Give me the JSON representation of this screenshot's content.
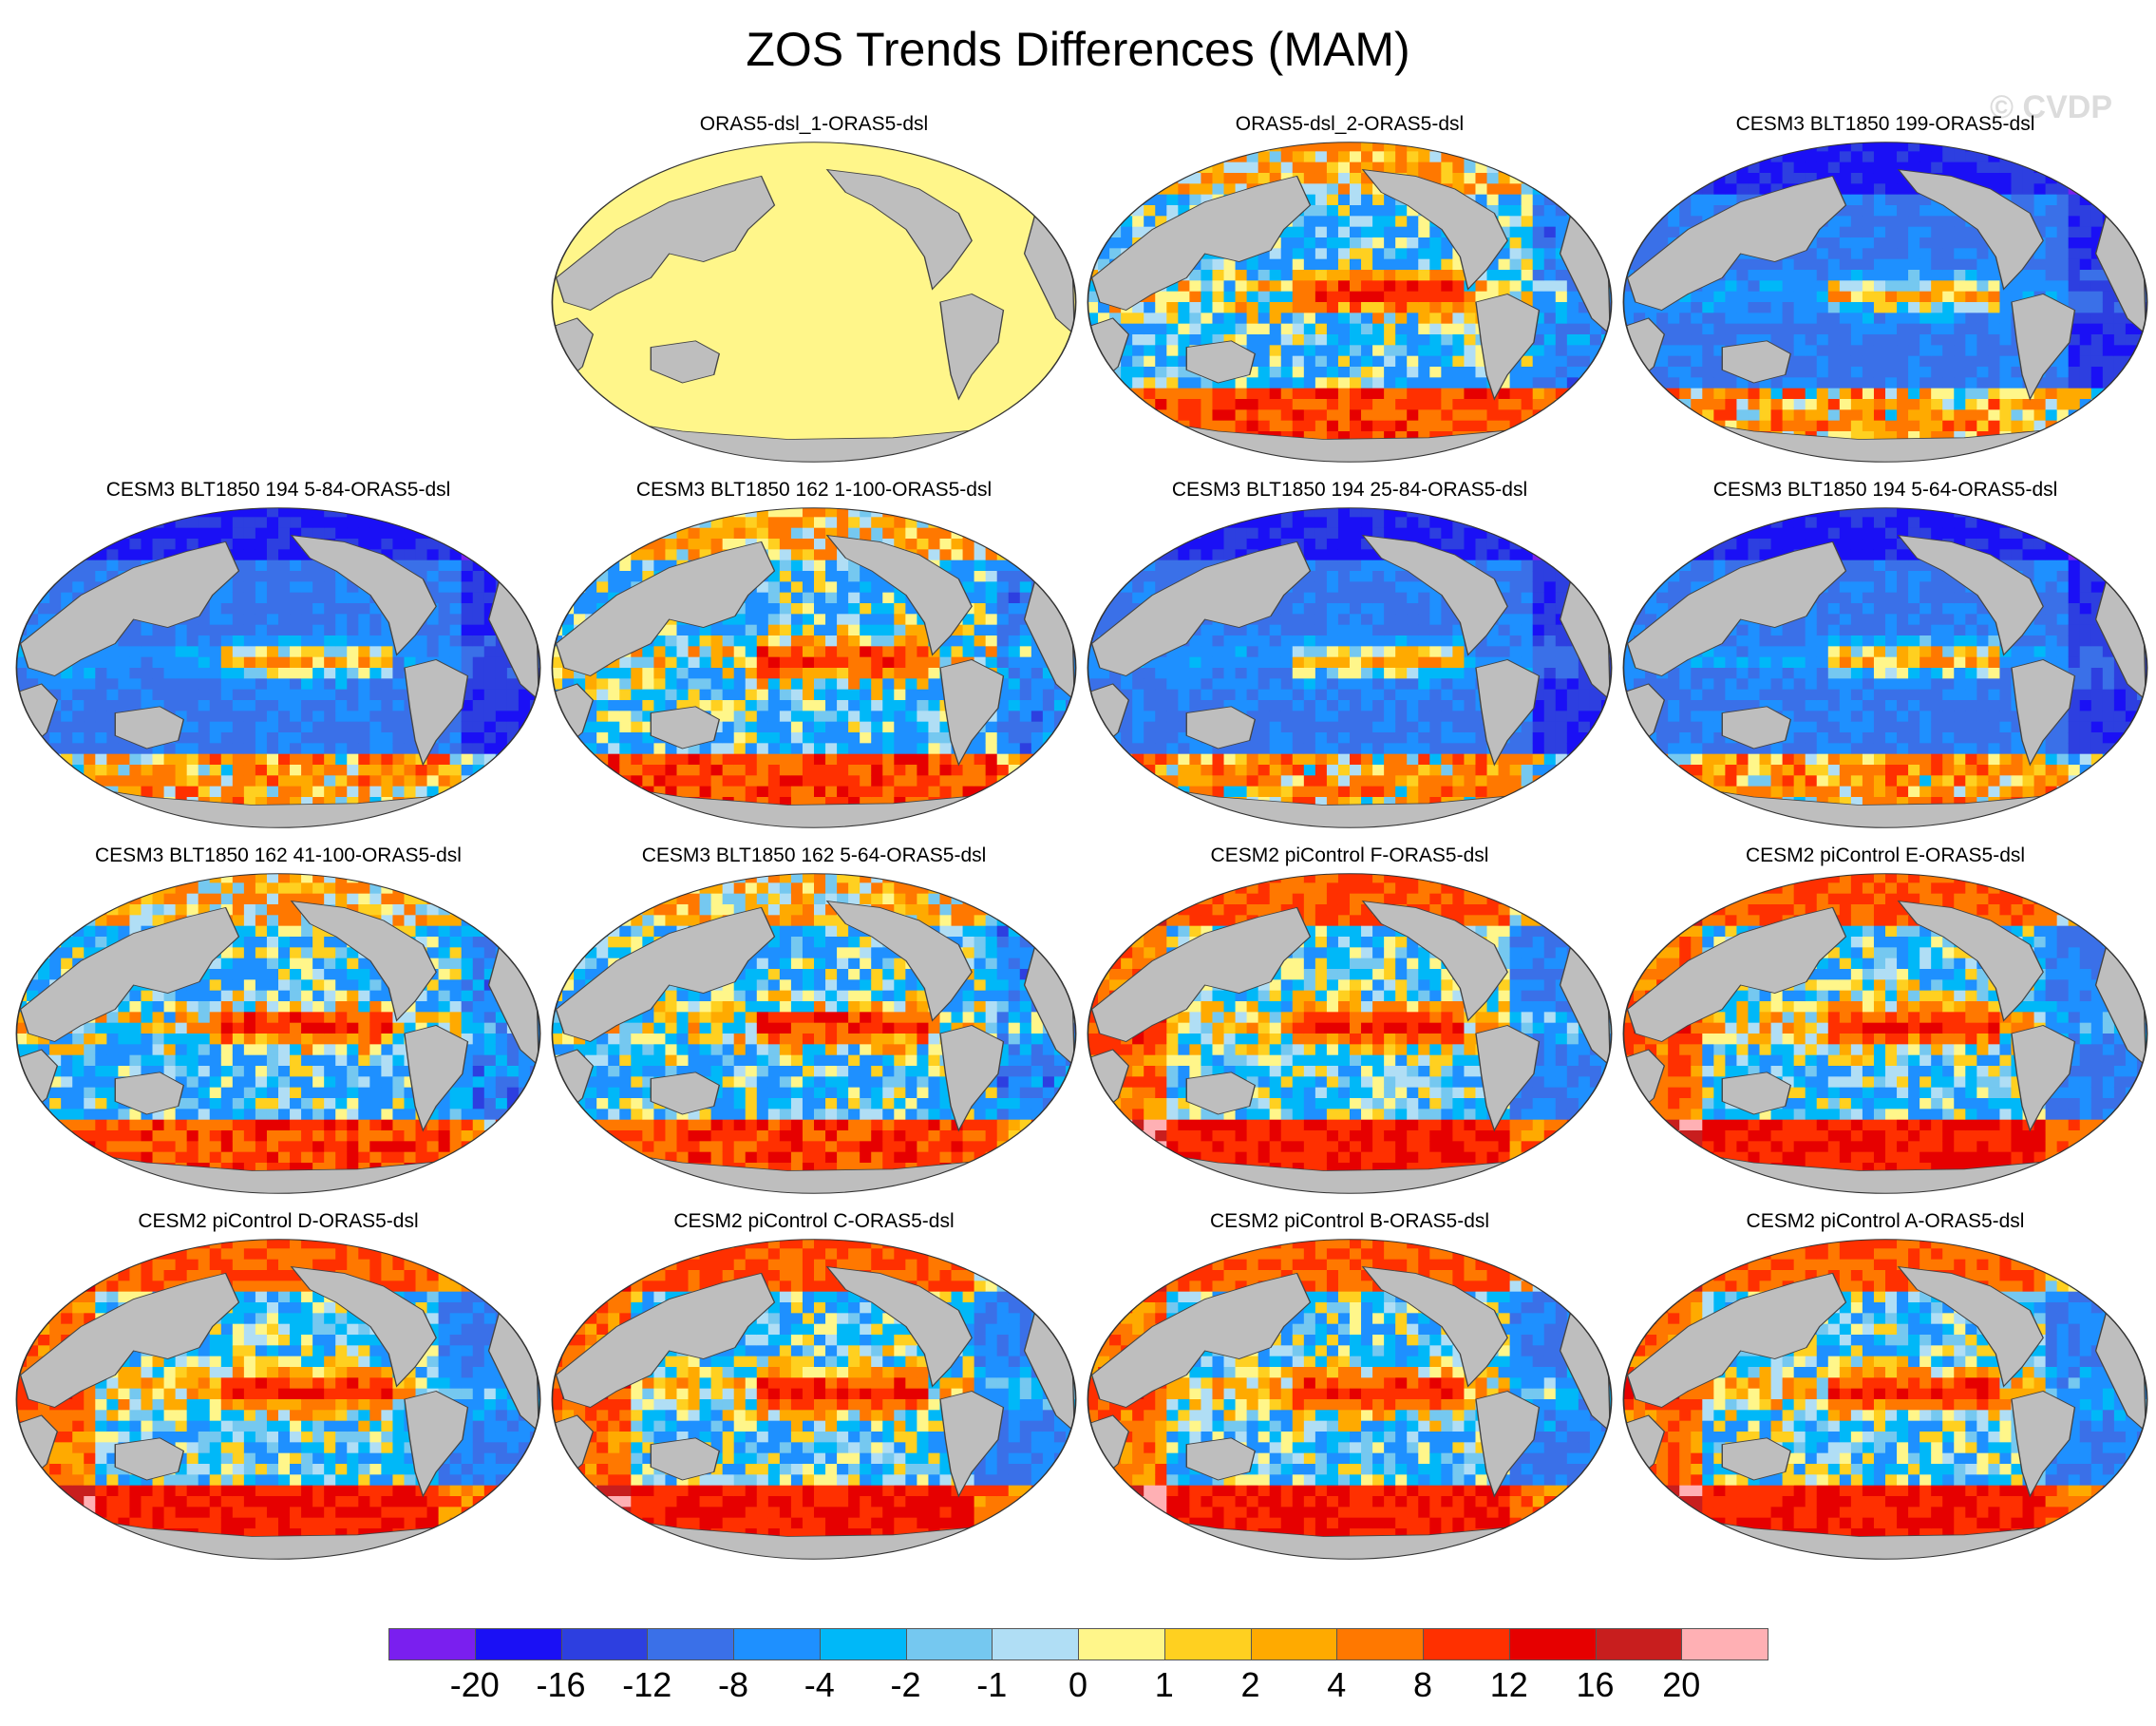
{
  "title": "ZOS Trends Differences (MAM)",
  "watermark": "© CVDP",
  "panels": [
    {
      "title": "",
      "style": "blank"
    },
    {
      "title": "ORAS5-dsl_1-ORAS5-dsl",
      "style": "zero"
    },
    {
      "title": "ORAS5-dsl_2-ORAS5-dsl",
      "style": "mixed"
    },
    {
      "title": "CESM3 BLT1850 199-ORAS5-dsl",
      "style": "neg"
    },
    {
      "title": "CESM3 BLT1850 194 5-84-ORAS5-dsl",
      "style": "neg"
    },
    {
      "title": "CESM3 BLT1850 162 1-100-ORAS5-dsl",
      "style": "mixed"
    },
    {
      "title": "CESM3 BLT1850 194 25-84-ORAS5-dsl",
      "style": "neg"
    },
    {
      "title": "CESM3 BLT1850 194 5-64-ORAS5-dsl",
      "style": "neg"
    },
    {
      "title": "CESM3 BLT1850 162 41-100-ORAS5-dsl",
      "style": "mixed"
    },
    {
      "title": "CESM3 BLT1850 162 5-64-ORAS5-dsl",
      "style": "mixed"
    },
    {
      "title": "CESM2 piControl F-ORAS5-dsl",
      "style": "pos"
    },
    {
      "title": "CESM2 piControl E-ORAS5-dsl",
      "style": "pos"
    },
    {
      "title": "CESM2 piControl D-ORAS5-dsl",
      "style": "pos"
    },
    {
      "title": "CESM2 piControl C-ORAS5-dsl",
      "style": "pos"
    },
    {
      "title": "CESM2 piControl B-ORAS5-dsl",
      "style": "pos"
    },
    {
      "title": "CESM2 piControl A-ORAS5-dsl",
      "style": "pos"
    }
  ],
  "colorbar": {
    "colors": [
      "#7a1fef",
      "#1a10f5",
      "#2d3fe0",
      "#3a70e8",
      "#1e90ff",
      "#00b8f8",
      "#75c8f0",
      "#b0def5",
      "#fff68a",
      "#ffd020",
      "#ffaa00",
      "#ff7800",
      "#ff3000",
      "#e60000",
      "#c81e1e",
      "#ffb0b4"
    ],
    "labels": [
      "-20",
      "-16",
      "-12",
      "-8",
      "-4",
      "-2",
      "-1",
      "0",
      "1",
      "2",
      "4",
      "8",
      "12",
      "16",
      "20"
    ]
  },
  "land_color": "#bebebe",
  "zero_fill_color": "#fff68a"
}
